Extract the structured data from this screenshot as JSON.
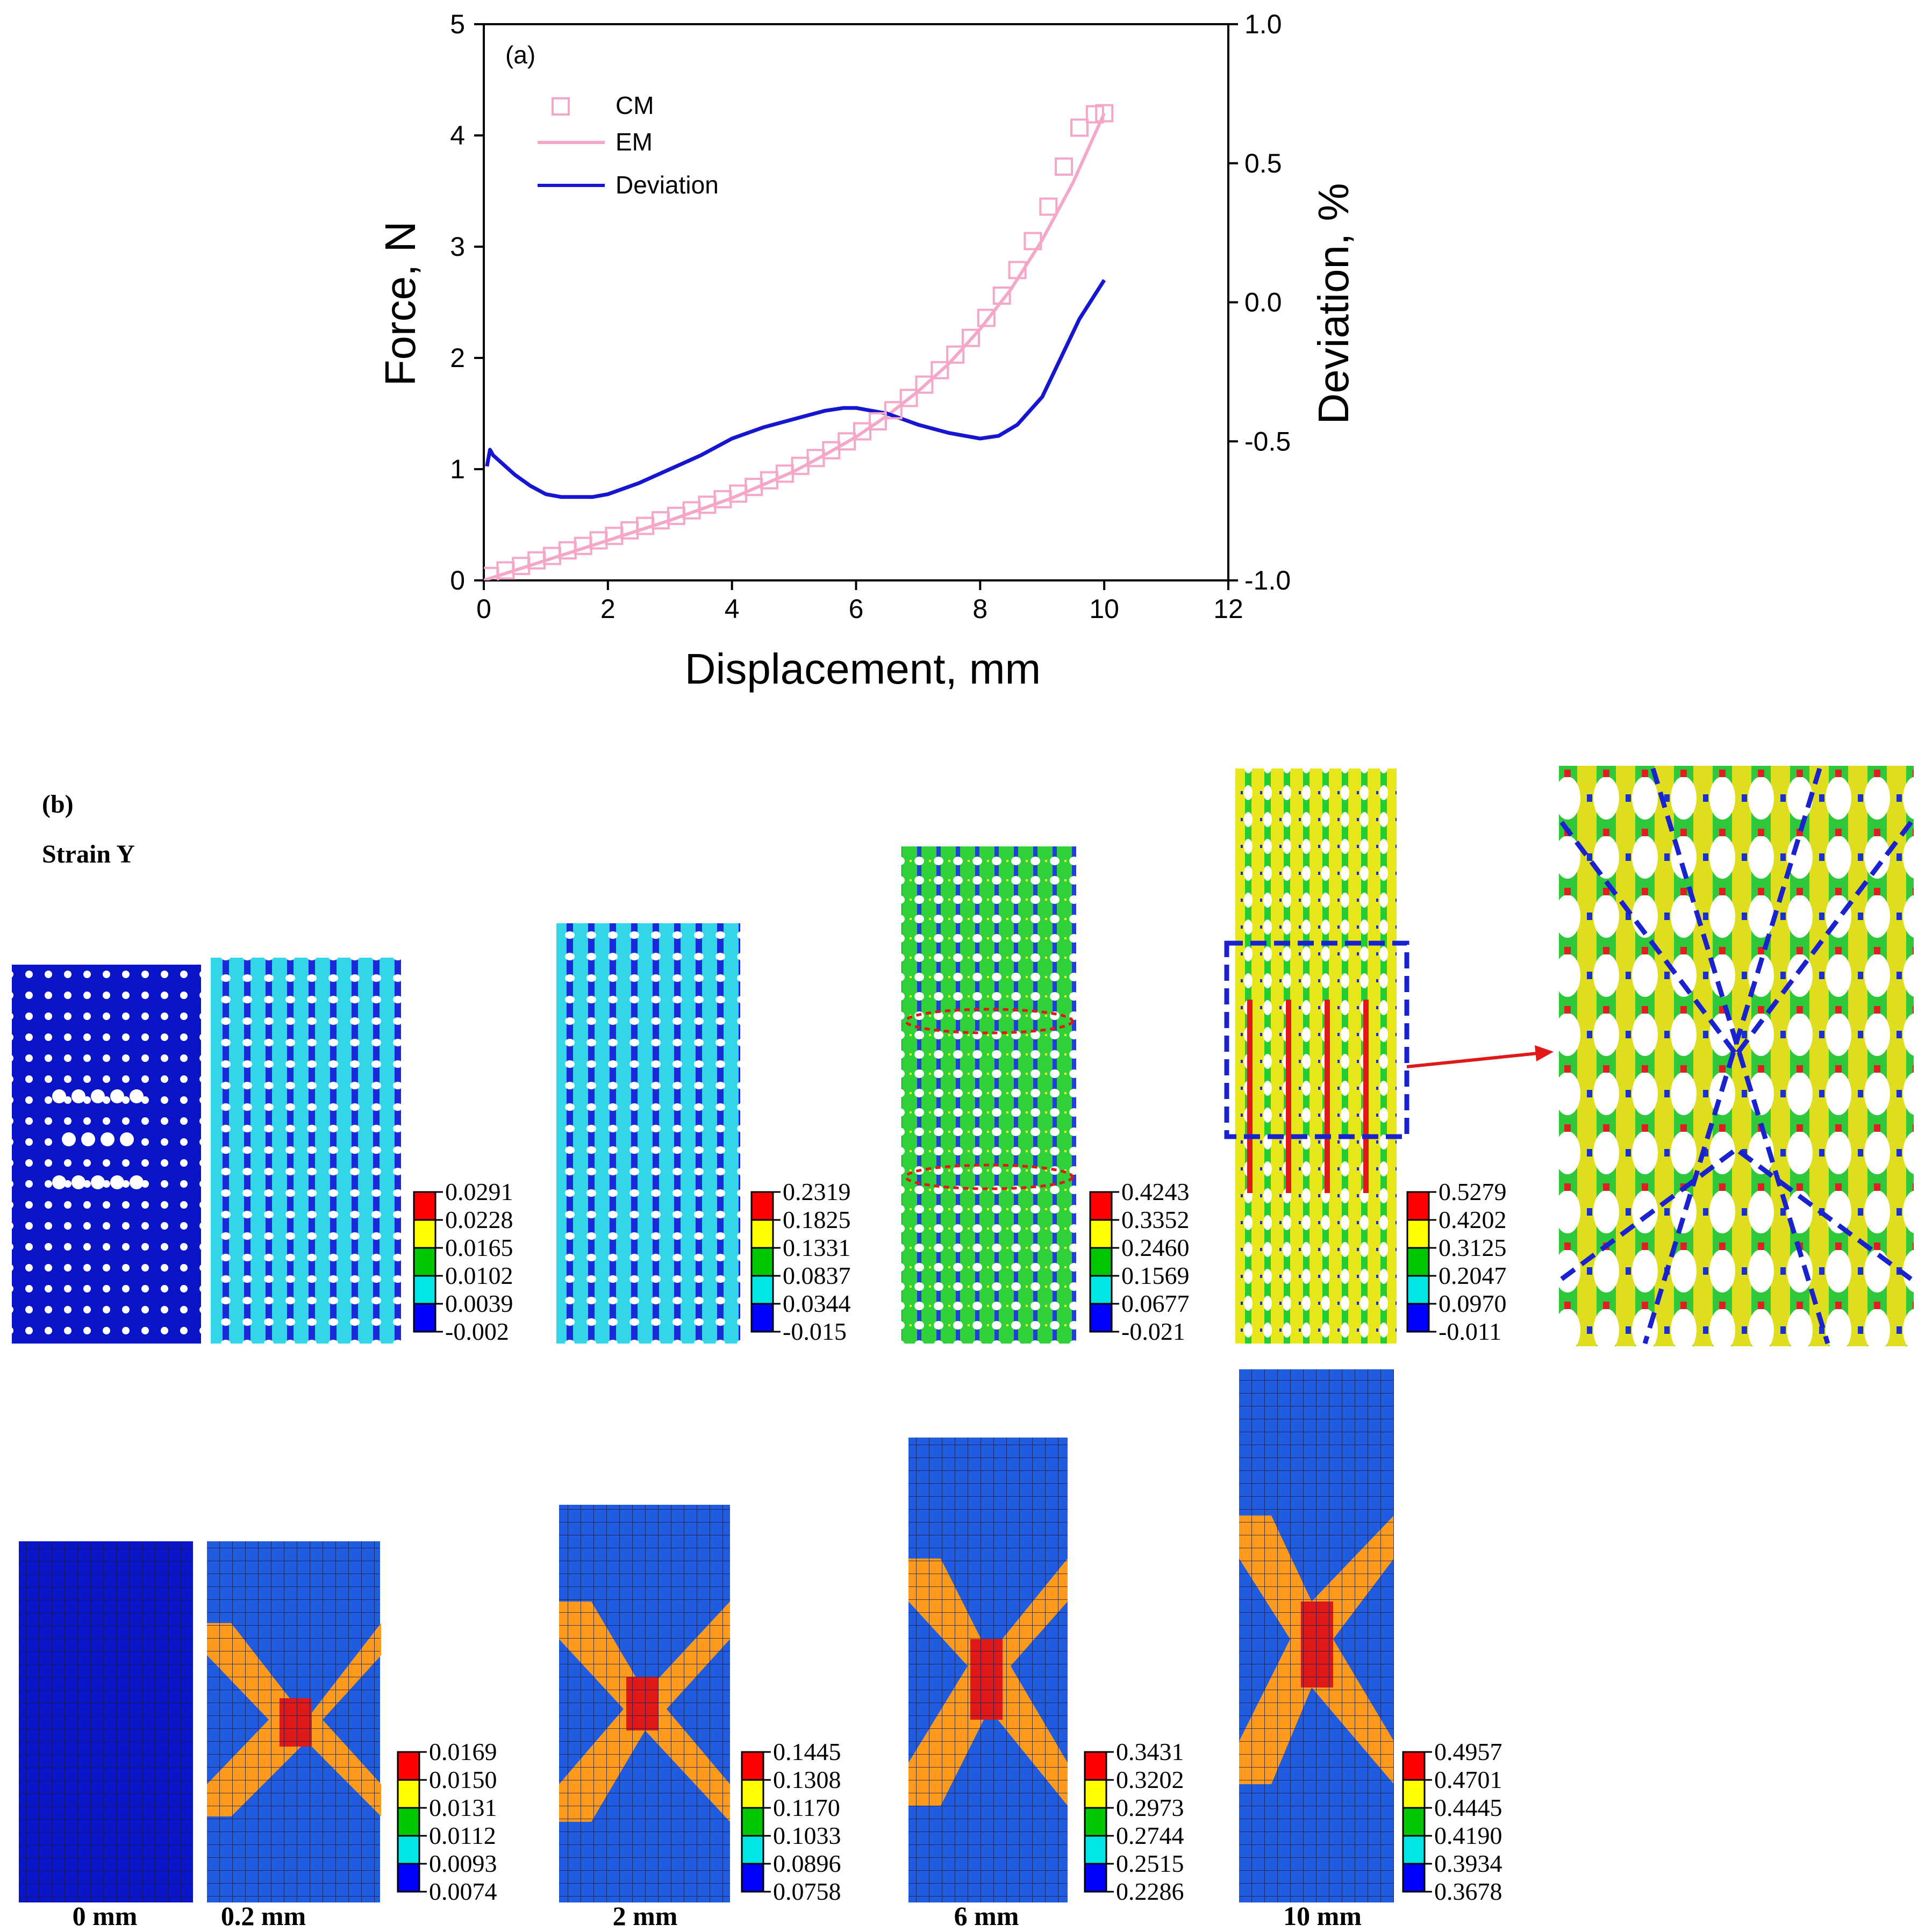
{
  "panel_a": {
    "label": "(a)",
    "chart_data": {
      "type": "line",
      "x_axis": {
        "label": "Displacement, mm",
        "range": [
          0,
          12
        ],
        "ticks": [
          0,
          2,
          4,
          6,
          8,
          10,
          12
        ]
      },
      "y_axis_left": {
        "label": "Force, N",
        "range": [
          0,
          5
        ],
        "ticks": [
          0,
          1,
          2,
          3,
          4,
          5
        ]
      },
      "y_axis_right": {
        "label": "Deviation, %",
        "range": [
          -1.0,
          1.0
        ],
        "ticks": [
          -1.0,
          -0.5,
          0.0,
          0.5,
          1.0
        ],
        "tick_labels": [
          "-1.0",
          "-0.5",
          "0.0",
          "0.5",
          "1.0"
        ]
      },
      "legend": [
        {
          "name": "CM",
          "style": "open-square-markers",
          "color": "#f4a7c8"
        },
        {
          "name": "EM",
          "style": "line",
          "color": "#f4a7c8"
        },
        {
          "name": "Deviation",
          "style": "line",
          "color": "#1616d0"
        }
      ],
      "series": [
        {
          "name": "CM",
          "axis": "left",
          "x": [
            0.1,
            0.35,
            0.6,
            0.85,
            1.1,
            1.35,
            1.6,
            1.85,
            2.1,
            2.35,
            2.6,
            2.85,
            3.1,
            3.35,
            3.6,
            3.85,
            4.1,
            4.35,
            4.6,
            4.85,
            5.1,
            5.35,
            5.6,
            5.85,
            6.1,
            6.35,
            6.6,
            6.85,
            7.1,
            7.35,
            7.6,
            7.85,
            8.1,
            8.35,
            8.6,
            8.85,
            9.1,
            9.35,
            9.6,
            9.85,
            10.0
          ],
          "y": [
            0.04,
            0.09,
            0.13,
            0.18,
            0.22,
            0.27,
            0.31,
            0.36,
            0.4,
            0.45,
            0.49,
            0.54,
            0.58,
            0.63,
            0.68,
            0.73,
            0.78,
            0.84,
            0.9,
            0.96,
            1.03,
            1.1,
            1.17,
            1.25,
            1.34,
            1.43,
            1.53,
            1.64,
            1.76,
            1.89,
            2.03,
            2.18,
            2.36,
            2.56,
            2.79,
            3.05,
            3.36,
            3.72,
            4.07,
            4.19,
            4.2
          ]
        },
        {
          "name": "EM",
          "axis": "left",
          "x": [
            0,
            0.5,
            1,
            1.5,
            2,
            2.5,
            3,
            3.5,
            4,
            4.5,
            5,
            5.5,
            6,
            6.5,
            7,
            7.5,
            8,
            8.5,
            9,
            9.5,
            10
          ],
          "y": [
            0,
            0.09,
            0.18,
            0.27,
            0.36,
            0.45,
            0.54,
            0.64,
            0.74,
            0.86,
            0.98,
            1.13,
            1.29,
            1.48,
            1.7,
            1.95,
            2.26,
            2.62,
            3.06,
            3.58,
            4.2
          ]
        },
        {
          "name": "Deviation",
          "axis": "right",
          "x": [
            0.05,
            0.1,
            0.15,
            0.2,
            0.3,
            0.5,
            0.75,
            1,
            1.25,
            1.5,
            1.75,
            2,
            2.5,
            3,
            3.5,
            4,
            4.5,
            5,
            5.5,
            5.8,
            6,
            6.5,
            7,
            7.5,
            8,
            8.3,
            8.6,
            9,
            9.3,
            9.6,
            10
          ],
          "y": [
            -0.59,
            -0.53,
            -0.55,
            -0.56,
            -0.58,
            -0.62,
            -0.66,
            -0.69,
            -0.7,
            -0.7,
            -0.7,
            -0.69,
            -0.65,
            -0.6,
            -0.55,
            -0.49,
            -0.45,
            -0.42,
            -0.39,
            -0.38,
            -0.38,
            -0.4,
            -0.44,
            -0.47,
            -0.49,
            -0.48,
            -0.44,
            -0.34,
            -0.2,
            -0.06,
            0.08
          ]
        }
      ]
    }
  },
  "panel_b": {
    "label": "(b)",
    "title": "Strain Y",
    "columns": [
      {
        "displacement": "0 mm",
        "top_colorbar": null,
        "bottom_colorbar": null
      },
      {
        "displacement": "0.2 mm",
        "top_colorbar": [
          "0.0291",
          "0.0228",
          "0.0165",
          "0.0102",
          "0.0039",
          "-0.002"
        ],
        "bottom_colorbar": [
          "0.0169",
          "0.0150",
          "0.0131",
          "0.0112",
          "0.0093",
          "0.0074"
        ]
      },
      {
        "displacement": "2 mm",
        "top_colorbar": [
          "0.2319",
          "0.1825",
          "0.1331",
          "0.0837",
          "0.0344",
          "-0.015"
        ],
        "bottom_colorbar": [
          "0.1445",
          "0.1308",
          "0.1170",
          "0.1033",
          "0.0896",
          "0.0758"
        ]
      },
      {
        "displacement": "6 mm",
        "top_colorbar": [
          "0.4243",
          "0.3352",
          "0.2460",
          "0.1569",
          "0.0677",
          "-0.021"
        ],
        "bottom_colorbar": [
          "0.3431",
          "0.3202",
          "0.2973",
          "0.2744",
          "0.2515",
          "0.2286"
        ]
      },
      {
        "displacement": "10 mm",
        "top_colorbar": [
          "0.5279",
          "0.4202",
          "0.3125",
          "0.2047",
          "0.0970",
          "-0.011"
        ],
        "bottom_colorbar": [
          "0.4957",
          "0.4701",
          "0.4445",
          "0.4190",
          "0.3934",
          "0.3678"
        ]
      }
    ],
    "colors": {
      "scale": [
        "#ff0000",
        "#ffff00",
        "#00c800",
        "#00e6e6",
        "#0000ff"
      ],
      "deep_blue": "#0a14c8",
      "mesh_blue": "#1f5ce0",
      "orange": "#ff9a1a",
      "red_highlight": "#e01818",
      "dashed_box": "#1a22d0"
    }
  }
}
